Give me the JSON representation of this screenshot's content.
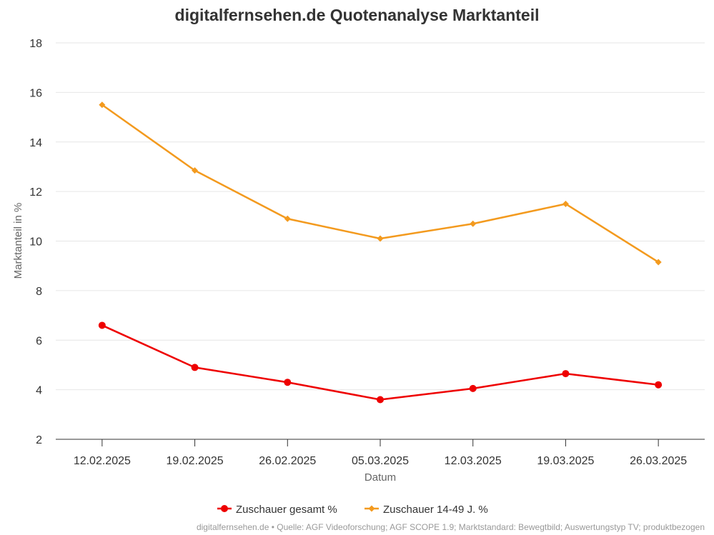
{
  "chart_data": {
    "type": "line",
    "title": "digitalfernsehen.de Quotenanalyse Marktanteil",
    "xlabel": "Datum",
    "ylabel": "Marktanteil in %",
    "ylim": [
      2,
      18
    ],
    "yticks": [
      2,
      4,
      6,
      8,
      10,
      12,
      14,
      16,
      18
    ],
    "grid": true,
    "legend": "bottom-center",
    "categories": [
      "12.02.2025",
      "19.02.2025",
      "26.02.2025",
      "05.03.2025",
      "12.03.2025",
      "19.03.2025",
      "26.03.2025"
    ],
    "series": [
      {
        "name": "Zuschauer gesamt %",
        "color": "#ee0000",
        "marker": "circle",
        "values": [
          6.6,
          4.9,
          4.3,
          3.6,
          4.05,
          4.65,
          4.2
        ]
      },
      {
        "name": "Zuschauer 14-49 J. %",
        "color": "#f39a1e",
        "marker": "diamond",
        "values": [
          15.5,
          12.85,
          10.9,
          10.1,
          10.7,
          11.5,
          9.15
        ]
      }
    ],
    "source": "digitalfernsehen.de • Quelle: AGF Videoforschung; AGF SCOPE 1.9; Marktstandard: Bewegtbild; Auswertungstyp TV; produktbezogen"
  }
}
